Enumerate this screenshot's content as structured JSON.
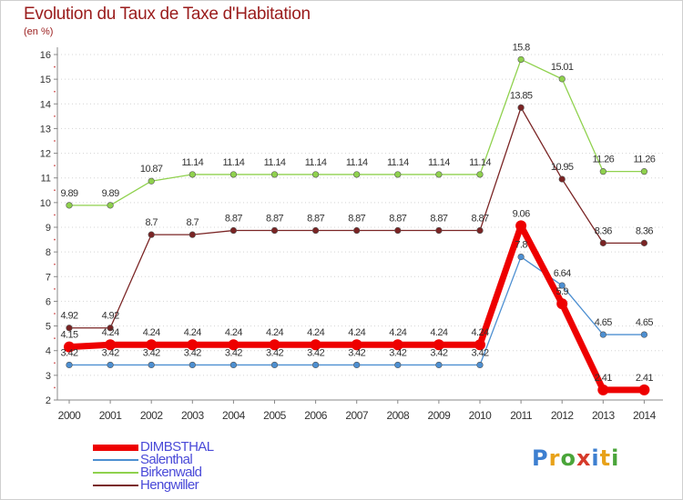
{
  "header": {
    "title": "Evolution du Taux de Taxe d'Habitation",
    "unit": "(en %)"
  },
  "logo": {
    "text": "Proxiti",
    "colors": [
      "#3d7fd0",
      "#e8a21a",
      "#4aa53a",
      "#d63a2a",
      "#3d7fd0",
      "#e8a21a",
      "#4aa53a"
    ]
  },
  "chart_data": {
    "type": "line",
    "title": "Evolution du Taux de Taxe d'Habitation",
    "ylabel": "(en %)",
    "xlabel": "",
    "x": [
      "2000",
      "2001",
      "2002",
      "2003",
      "2004",
      "2005",
      "2006",
      "2007",
      "2008",
      "2009",
      "2010",
      "2011",
      "2012",
      "2013",
      "2014"
    ],
    "ylim": [
      2,
      16
    ],
    "yticks": [
      "2",
      "3",
      "4",
      "5",
      "6",
      "7",
      "8",
      "9",
      "10",
      "11",
      "12",
      "13",
      "14",
      "15",
      "16"
    ],
    "grid": "horizontal dotted",
    "legend_position": "bottom-left",
    "series": [
      {
        "name": "DIMBSTHAL",
        "color": "#ee0000",
        "values": [
          4.15,
          4.24,
          4.24,
          4.24,
          4.24,
          4.24,
          4.24,
          4.24,
          4.24,
          4.24,
          4.24,
          9.06,
          5.9,
          2.41,
          2.41
        ],
        "labels": [
          "4.15",
          "4.24",
          "4.24",
          "4.24",
          "4.24",
          "4.24",
          "4.24",
          "4.24",
          "4.24",
          "4.24",
          "4.24",
          "9.06",
          "5.9",
          "2.41",
          "2.41"
        ]
      },
      {
        "name": "Salenthal",
        "color": "#4d8fd1",
        "values": [
          3.42,
          3.42,
          3.42,
          3.42,
          3.42,
          3.42,
          3.42,
          3.42,
          3.42,
          3.42,
          3.42,
          7.8,
          6.64,
          4.65,
          4.65
        ],
        "labels": [
          "3.42",
          "3.42",
          "3.42",
          "3.42",
          "3.42",
          "3.42",
          "3.42",
          "3.42",
          "3.42",
          "3.42",
          "3.42",
          "7.8",
          "6.64",
          "4.65",
          "4.65"
        ]
      },
      {
        "name": "Birkenwald",
        "color": "#8fd14d",
        "values": [
          9.89,
          9.89,
          10.87,
          11.14,
          11.14,
          11.14,
          11.14,
          11.14,
          11.14,
          11.14,
          11.14,
          15.8,
          15.01,
          11.26,
          11.26
        ],
        "labels": [
          "9.89",
          "9.89",
          "10.87",
          "11.14",
          "11.14",
          "11.14",
          "11.14",
          "11.14",
          "11.14",
          "11.14",
          "11.14",
          "15.8",
          "15.01",
          "11.26",
          "11.26"
        ]
      },
      {
        "name": "Hengwiller",
        "color": "#7a2424",
        "values": [
          4.92,
          4.92,
          8.7,
          8.7,
          8.87,
          8.87,
          8.87,
          8.87,
          8.87,
          8.87,
          8.87,
          13.85,
          10.95,
          8.36,
          8.36
        ],
        "labels": [
          "4.92",
          "4.92",
          "8.7",
          "8.7",
          "8.87",
          "8.87",
          "8.87",
          "8.87",
          "8.87",
          "8.87",
          "8.87",
          "13.85",
          "10.95",
          "8.36",
          "8.36"
        ]
      }
    ]
  }
}
